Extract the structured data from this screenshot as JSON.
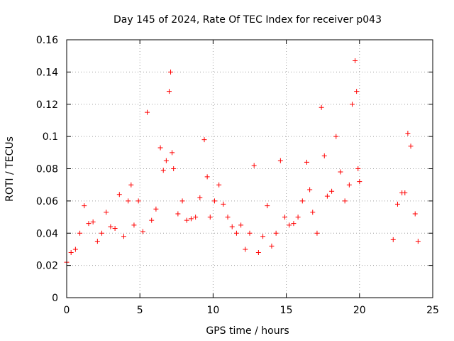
{
  "chart_data": {
    "type": "scatter",
    "title": "Day 145 of 2024, Rate Of TEC Index for receiver p043",
    "xlabel": "GPS time / hours",
    "ylabel": "ROTI / TECUs",
    "xlim": [
      0,
      25
    ],
    "ylim": [
      0,
      0.16
    ],
    "xticks": [
      "0",
      "5",
      "10",
      "15",
      "20",
      "25"
    ],
    "xtick_values": [
      0,
      5,
      10,
      15,
      20,
      25
    ],
    "yticks": [
      "0",
      "0.02",
      "0.04",
      "0.06",
      "0.08",
      "0.1",
      "0.12",
      "0.14",
      "0.16"
    ],
    "ytick_values": [
      0,
      0.02,
      0.04,
      0.06,
      0.08,
      0.1,
      0.12,
      0.14,
      0.16
    ],
    "grid": true,
    "marker": "plus",
    "color": "#ff0000",
    "series": [
      {
        "x": [
          0.0,
          0.3,
          0.6,
          0.9,
          1.2,
          1.5,
          1.8,
          2.1,
          2.4,
          2.7,
          3.0,
          3.3,
          3.6,
          3.9,
          4.2,
          4.4,
          4.6,
          4.9,
          5.2,
          5.5,
          5.8,
          6.1,
          6.4,
          6.6,
          6.8,
          7.0,
          7.1,
          7.2,
          7.3,
          7.6,
          7.9,
          8.2,
          8.5,
          8.8,
          9.1,
          9.4,
          9.6,
          9.8,
          10.1,
          10.4,
          10.7,
          11.0,
          11.3,
          11.6,
          11.9,
          12.2,
          12.5,
          12.8,
          13.1,
          13.4,
          13.7,
          14.0,
          14.3,
          14.6,
          14.9,
          15.2,
          15.5,
          15.8,
          16.1,
          16.4,
          16.6,
          16.8,
          17.1,
          17.4,
          17.6,
          17.8,
          18.1,
          18.4,
          18.7,
          19.0,
          19.3,
          19.5,
          19.7,
          19.8,
          19.9,
          20.0,
          22.3,
          22.6,
          22.9,
          23.1,
          23.3,
          23.5,
          23.8,
          24.0
        ],
        "y": [
          0.022,
          0.028,
          0.03,
          0.04,
          0.057,
          0.046,
          0.047,
          0.035,
          0.04,
          0.053,
          0.044,
          0.043,
          0.064,
          0.038,
          0.06,
          0.07,
          0.045,
          0.06,
          0.041,
          0.115,
          0.048,
          0.055,
          0.093,
          0.079,
          0.085,
          0.128,
          0.14,
          0.09,
          0.08,
          0.052,
          0.06,
          0.048,
          0.049,
          0.05,
          0.062,
          0.098,
          0.075,
          0.05,
          0.06,
          0.07,
          0.058,
          0.05,
          0.044,
          0.04,
          0.045,
          0.03,
          0.04,
          0.082,
          0.028,
          0.038,
          0.057,
          0.032,
          0.04,
          0.085,
          0.05,
          0.045,
          0.046,
          0.05,
          0.06,
          0.084,
          0.067,
          0.053,
          0.04,
          0.118,
          0.088,
          0.063,
          0.066,
          0.1,
          0.078,
          0.06,
          0.07,
          0.12,
          0.147,
          0.128,
          0.08,
          0.072,
          0.036,
          0.058,
          0.065,
          0.065,
          0.102,
          0.094,
          0.052,
          0.035
        ]
      }
    ]
  }
}
